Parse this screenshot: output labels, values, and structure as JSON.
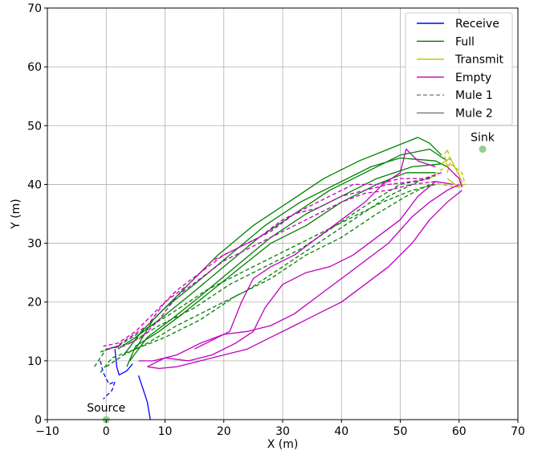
{
  "chart_data": {
    "type": "line",
    "title": "",
    "xlabel": "X (m)",
    "ylabel": "Y (m)",
    "xlim": [
      -10,
      70
    ],
    "ylim": [
      0,
      70
    ],
    "xticks": [
      -10,
      0,
      10,
      20,
      30,
      40,
      50,
      60,
      70
    ],
    "yticks": [
      0,
      10,
      20,
      30,
      40,
      50,
      60,
      70
    ],
    "xtick_labels": [
      "−10",
      "0",
      "10",
      "20",
      "30",
      "40",
      "50",
      "60",
      "70"
    ],
    "ytick_labels": [
      "0",
      "10",
      "20",
      "30",
      "40",
      "50",
      "60",
      "70"
    ],
    "grid": true,
    "legend_position": "top-right",
    "legend": [
      {
        "label": "Receive",
        "color": "#0000ff",
        "style": "solid"
      },
      {
        "label": "Full",
        "color": "#008000",
        "style": "solid"
      },
      {
        "label": "Transmit",
        "color": "#bfbf00",
        "style": "solid"
      },
      {
        "label": "Empty",
        "color": "#bf00bf",
        "style": "solid"
      },
      {
        "label": "Mule 1",
        "color": "#808080",
        "style": "dashed"
      },
      {
        "label": "Mule 2",
        "color": "#808080",
        "style": "solid"
      }
    ],
    "points": [
      {
        "label": "Sink",
        "x": 64,
        "y": 46,
        "color": "#90d090"
      },
      {
        "label": "Source",
        "x": 0,
        "y": 0,
        "color": "#90d090"
      }
    ],
    "series": [
      {
        "state": "Receive",
        "mule": "Mule 2",
        "color": "#0000ff",
        "dashed": false,
        "points": [
          [
            7.5,
            0
          ],
          [
            7,
            3
          ],
          [
            6,
            6
          ],
          [
            5.5,
            7.5
          ]
        ]
      },
      {
        "state": "Receive",
        "mule": "Mule 2",
        "color": "#0000ff",
        "dashed": false,
        "points": [
          [
            1.5,
            12
          ],
          [
            1.8,
            9
          ],
          [
            2.2,
            7.6
          ],
          [
            3.5,
            8.3
          ],
          [
            4.5,
            9.5
          ]
        ]
      },
      {
        "state": "Receive",
        "mule": "Mule 1",
        "color": "#0000ff",
        "dashed": true,
        "points": [
          [
            -1,
            10
          ],
          [
            -0.5,
            8
          ],
          [
            0.5,
            6
          ],
          [
            1.5,
            6.5
          ],
          [
            1,
            5
          ],
          [
            0,
            4
          ],
          [
            -0.5,
            3.5
          ]
        ]
      },
      {
        "state": "Full",
        "mule": "Mule 2",
        "color": "#008000",
        "dashed": false,
        "points": [
          [
            2,
            12
          ],
          [
            5,
            14
          ],
          [
            9,
            17
          ],
          [
            14,
            21
          ],
          [
            20,
            26
          ],
          [
            26,
            31
          ],
          [
            32,
            35
          ],
          [
            38,
            39
          ],
          [
            44,
            42
          ],
          [
            50,
            45
          ],
          [
            55,
            46
          ],
          [
            58,
            44
          ]
        ]
      },
      {
        "state": "Full",
        "mule": "Mule 2",
        "color": "#008000",
        "dashed": false,
        "points": [
          [
            3,
            11
          ],
          [
            6,
            15
          ],
          [
            10,
            19
          ],
          [
            15,
            23
          ],
          [
            21,
            28
          ],
          [
            27,
            33
          ],
          [
            33,
            37
          ],
          [
            39,
            40
          ],
          [
            45,
            43
          ],
          [
            50,
            44.5
          ],
          [
            56,
            44
          ],
          [
            58,
            43
          ]
        ]
      },
      {
        "state": "Full",
        "mule": "Mule 2",
        "color": "#008000",
        "dashed": false,
        "points": [
          [
            4,
            10
          ],
          [
            7,
            14
          ],
          [
            11,
            17
          ],
          [
            16,
            21
          ],
          [
            22,
            26
          ],
          [
            28,
            31
          ],
          [
            34,
            35
          ],
          [
            40,
            38
          ],
          [
            46,
            41
          ],
          [
            52,
            43
          ],
          [
            57,
            43.5
          ]
        ]
      },
      {
        "state": "Full",
        "mule": "Mule 2",
        "color": "#008000",
        "dashed": false,
        "points": [
          [
            5,
            12
          ],
          [
            8,
            17
          ],
          [
            13,
            22
          ],
          [
            19,
            28
          ],
          [
            25,
            33
          ],
          [
            31,
            37
          ],
          [
            37,
            41
          ],
          [
            43,
            44
          ],
          [
            48,
            46
          ],
          [
            53,
            48
          ],
          [
            55,
            47
          ],
          [
            57,
            45
          ]
        ]
      },
      {
        "state": "Full",
        "mule": "Mule 2",
        "color": "#008000",
        "dashed": false,
        "points": [
          [
            3.5,
            9
          ],
          [
            5,
            12.5
          ],
          [
            9,
            15
          ],
          [
            13,
            18
          ],
          [
            18,
            22
          ],
          [
            23,
            26
          ],
          [
            28,
            30
          ],
          [
            34,
            33
          ],
          [
            40,
            37
          ],
          [
            46,
            40
          ],
          [
            51,
            42
          ],
          [
            56,
            42
          ]
        ]
      },
      {
        "state": "Full",
        "mule": "Mule 1",
        "color": "#008000",
        "dashed": true,
        "points": [
          [
            -2,
            9
          ],
          [
            0,
            12
          ],
          [
            4,
            13
          ],
          [
            9,
            16
          ],
          [
            15,
            19
          ],
          [
            21,
            23
          ],
          [
            27,
            26
          ],
          [
            33,
            29
          ],
          [
            39,
            33
          ],
          [
            45,
            37
          ],
          [
            50,
            40
          ],
          [
            55,
            41
          ]
        ]
      },
      {
        "state": "Full",
        "mule": "Mule 1",
        "color": "#008000",
        "dashed": true,
        "points": [
          [
            -1,
            8
          ],
          [
            1,
            10.5
          ],
          [
            5,
            12
          ],
          [
            10,
            14
          ],
          [
            16,
            17
          ],
          [
            22,
            21
          ],
          [
            28,
            24
          ],
          [
            34,
            28
          ],
          [
            40,
            31
          ],
          [
            46,
            35
          ],
          [
            51,
            38
          ],
          [
            55,
            40
          ]
        ]
      },
      {
        "state": "Full",
        "mule": "Mule 1",
        "color": "#008000",
        "dashed": true,
        "points": [
          [
            0,
            9
          ],
          [
            3,
            11
          ],
          [
            7,
            13
          ],
          [
            12,
            16
          ],
          [
            18,
            19
          ],
          [
            24,
            22
          ],
          [
            30,
            26
          ],
          [
            36,
            30
          ],
          [
            42,
            34
          ],
          [
            48,
            38
          ],
          [
            53,
            40.5
          ],
          [
            56,
            41.5
          ]
        ]
      },
      {
        "state": "Full",
        "mule": "Mule 1",
        "color": "#008000",
        "dashed": true,
        "points": [
          [
            -1,
            11.5
          ],
          [
            2,
            12.5
          ],
          [
            6,
            15
          ],
          [
            11,
            18
          ],
          [
            17,
            22
          ],
          [
            23,
            25
          ],
          [
            29,
            28
          ],
          [
            35,
            31
          ],
          [
            41,
            34
          ],
          [
            47,
            37
          ],
          [
            52,
            39
          ],
          [
            56,
            40
          ]
        ]
      },
      {
        "state": "Transmit",
        "mule": "Mule 2",
        "color": "#bfbf00",
        "dashed": false,
        "points": [
          [
            57,
            43.5
          ],
          [
            58.5,
            44.5
          ],
          [
            59.5,
            42.5
          ],
          [
            60.5,
            40.5
          ],
          [
            60,
            39.5
          ],
          [
            58,
            41
          ]
        ]
      },
      {
        "state": "Transmit",
        "mule": "Mule 1",
        "color": "#bfbf00",
        "dashed": true,
        "points": [
          [
            55,
            41
          ],
          [
            57,
            42.5
          ],
          [
            58.5,
            43.5
          ],
          [
            60.5,
            42
          ],
          [
            61,
            40
          ],
          [
            59.5,
            39.5
          ],
          [
            57,
            40
          ],
          [
            55,
            40.5
          ]
        ]
      },
      {
        "state": "Transmit",
        "mule": "Mule 1",
        "color": "#bfbf00",
        "dashed": true,
        "points": [
          [
            58,
            42
          ],
          [
            58.5,
            44
          ],
          [
            58,
            46
          ],
          [
            57.5,
            45
          ],
          [
            58,
            43
          ]
        ]
      },
      {
        "state": "Empty",
        "mule": "Mule 2",
        "color": "#bf00bf",
        "dashed": false,
        "points": [
          [
            60,
            40
          ],
          [
            58,
            39
          ],
          [
            55,
            37
          ],
          [
            52,
            34.5
          ],
          [
            48,
            30
          ],
          [
            44,
            27
          ],
          [
            40,
            24
          ],
          [
            36,
            21
          ],
          [
            32,
            18
          ],
          [
            28,
            16
          ],
          [
            24,
            15
          ],
          [
            20,
            14.5
          ],
          [
            16,
            13
          ],
          [
            12,
            11
          ],
          [
            8,
            10
          ],
          [
            5.5,
            10
          ]
        ]
      },
      {
        "state": "Empty",
        "mule": "Mule 2",
        "color": "#bf00bf",
        "dashed": false,
        "points": [
          [
            60.5,
            39
          ],
          [
            58,
            37
          ],
          [
            55,
            34
          ],
          [
            52,
            30
          ],
          [
            48,
            26
          ],
          [
            44,
            23
          ],
          [
            40,
            20
          ],
          [
            36,
            18
          ],
          [
            32,
            16
          ],
          [
            28,
            14
          ],
          [
            24,
            12
          ],
          [
            20,
            11
          ],
          [
            16,
            10
          ],
          [
            12,
            9
          ],
          [
            9,
            8.7
          ],
          [
            7,
            9
          ]
        ]
      },
      {
        "state": "Empty",
        "mule": "Mule 2",
        "color": "#bf00bf",
        "dashed": false,
        "points": [
          [
            59,
            40
          ],
          [
            56,
            40.5
          ],
          [
            53,
            38
          ],
          [
            50,
            34
          ],
          [
            46,
            31
          ],
          [
            42,
            28
          ],
          [
            38,
            26
          ],
          [
            34,
            25
          ],
          [
            30,
            23
          ],
          [
            27,
            19
          ],
          [
            25,
            15
          ],
          [
            22,
            13
          ],
          [
            18,
            11
          ],
          [
            14,
            10
          ],
          [
            10,
            10.5
          ],
          [
            7,
            9
          ]
        ]
      },
      {
        "state": "Empty",
        "mule": "Mule 2",
        "color": "#bf00bf",
        "dashed": false,
        "points": [
          [
            56,
            43
          ],
          [
            53,
            44
          ],
          [
            51,
            46
          ],
          [
            50.5,
            44
          ],
          [
            50,
            42
          ],
          [
            47,
            40
          ],
          [
            44,
            37
          ],
          [
            40,
            34
          ],
          [
            36,
            31
          ],
          [
            32,
            28
          ],
          [
            28,
            26
          ],
          [
            25,
            24
          ],
          [
            23,
            20
          ],
          [
            21,
            15
          ],
          [
            19,
            14
          ],
          [
            15,
            12
          ]
        ]
      },
      {
        "state": "Empty",
        "mule": "Mule 2",
        "color": "#bf00bf",
        "dashed": false,
        "points": [
          [
            58,
            43
          ],
          [
            59,
            42
          ],
          [
            60,
            41
          ],
          [
            60.5,
            39.5
          ]
        ]
      },
      {
        "state": "Empty",
        "mule": "Mule 1",
        "color": "#bf00bf",
        "dashed": true,
        "points": [
          [
            55,
            41
          ],
          [
            52,
            40.5
          ],
          [
            48,
            40
          ],
          [
            44,
            39
          ],
          [
            40,
            38
          ],
          [
            36,
            36
          ],
          [
            32,
            35
          ],
          [
            28,
            32
          ],
          [
            24,
            30
          ],
          [
            20,
            28
          ],
          [
            16,
            25
          ],
          [
            12,
            22
          ],
          [
            8,
            18
          ],
          [
            5,
            15
          ],
          [
            2,
            13
          ],
          [
            -0.5,
            12.5
          ]
        ]
      },
      {
        "state": "Empty",
        "mule": "Mule 1",
        "color": "#bf00bf",
        "dashed": true,
        "points": [
          [
            57,
            42
          ],
          [
            54,
            41
          ],
          [
            50,
            41
          ],
          [
            46,
            40
          ],
          [
            42,
            40
          ],
          [
            38,
            38
          ],
          [
            34,
            36
          ],
          [
            30,
            34
          ],
          [
            26,
            31
          ],
          [
            22,
            29
          ],
          [
            18,
            27
          ],
          [
            14,
            23
          ],
          [
            10,
            20
          ],
          [
            7,
            16
          ],
          [
            4,
            14
          ],
          [
            1,
            12
          ]
        ]
      },
      {
        "state": "Empty",
        "mule": "Mule 1",
        "color": "#bf00bf",
        "dashed": true,
        "points": [
          [
            56,
            40.5
          ],
          [
            52,
            40
          ],
          [
            48,
            39
          ],
          [
            44,
            38.5
          ],
          [
            40,
            37
          ],
          [
            36,
            35
          ],
          [
            32,
            33
          ],
          [
            28,
            31
          ],
          [
            24,
            29
          ],
          [
            20,
            27
          ],
          [
            16,
            24
          ],
          [
            12,
            21
          ],
          [
            9,
            17
          ],
          [
            6,
            14
          ],
          [
            3,
            12.5
          ],
          [
            0,
            12
          ]
        ]
      }
    ]
  }
}
